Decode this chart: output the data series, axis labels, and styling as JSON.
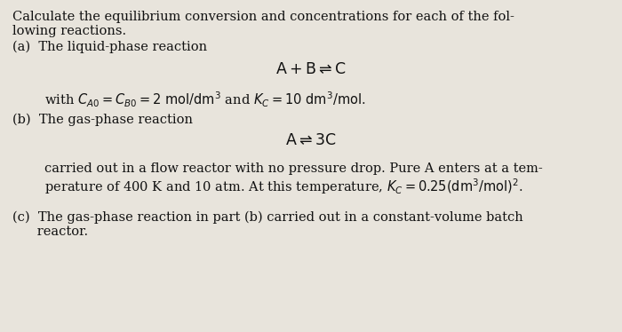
{
  "background_color": "#e8e4dc",
  "text_color": "#111111",
  "title_line1": "Calculate the equilibrium conversion and concentrations for each of the fol-",
  "title_line2": "lowing reactions.",
  "part_a_label": "(a)  The liquid-phase reaction",
  "part_b_label": "(b)  The gas-phase reaction",
  "condition_b1": "carried out in a flow reactor with no pressure drop. Pure A enters at a tem-",
  "condition_b2": "perature of 400 K and 10 atm. At this temperature, $K_c = 0.25(\\mathrm{dm}^3/\\mathrm{mol})^2$.",
  "part_c_label1": "(c)  The gas-phase reaction in part (b) carried out in a constant-volume batch",
  "part_c_label2": "      reactor.",
  "font_size": 10.5,
  "figwidth": 7.0,
  "figheight": 3.74,
  "dpi": 100
}
